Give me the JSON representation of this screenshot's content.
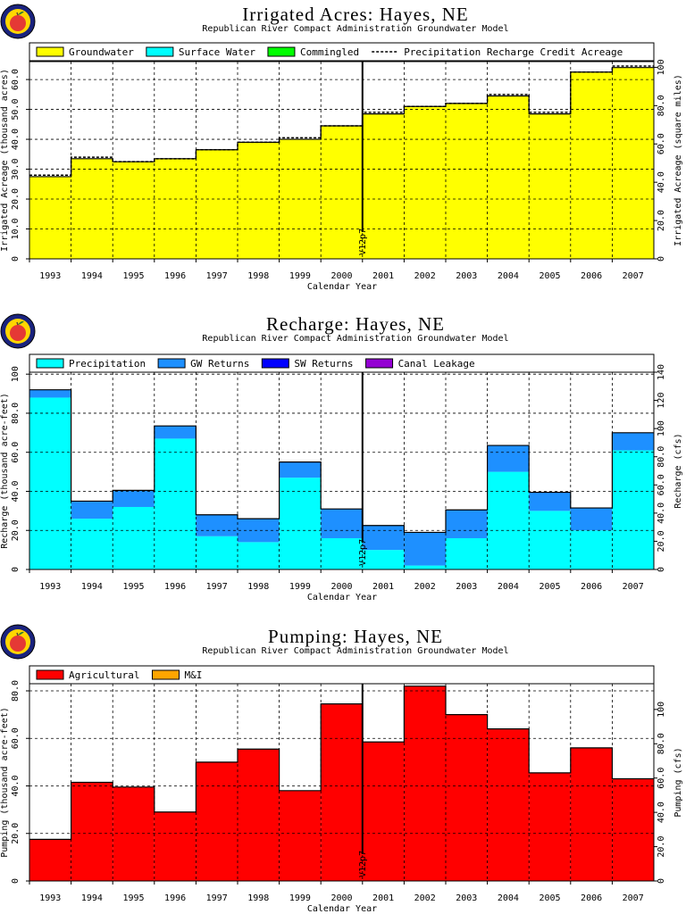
{
  "chart_data": [
    {
      "id": "irrigated",
      "type": "bar",
      "title": "Irrigated Acres: Hayes, NE",
      "subtitle": "Republican River Compact Administration Groundwater Model",
      "xlabel": "Calendar Year",
      "ylabel": "Irrigated Acreage (thousand acres)",
      "ylabel_right": "Irrigated Acreage (square miles)",
      "categories": [
        "1993",
        "1994",
        "1995",
        "1996",
        "1997",
        "1998",
        "1999",
        "2000",
        "2001",
        "2002",
        "2003",
        "2004",
        "2005",
        "2006",
        "2007"
      ],
      "ylim": [
        0,
        66
      ],
      "yticks": [
        0,
        10,
        20,
        30,
        40,
        50,
        60
      ],
      "ytick_labels": [
        "0",
        "10.0",
        "20.0",
        "30.0",
        "40.0",
        "50.0",
        "60.0"
      ],
      "ylim_right": [
        0,
        103
      ],
      "yticks_right": [
        0,
        20,
        40,
        60,
        80,
        100
      ],
      "ytick_labels_right": [
        "0",
        "20.0",
        "40.0",
        "60.0",
        "80.0",
        "100"
      ],
      "grid": true,
      "legend_position": "top",
      "series": [
        {
          "name": "Groundwater",
          "color": "#ffff00",
          "values": [
            27.5,
            33.5,
            32.5,
            33.5,
            36.5,
            39,
            40,
            44.5,
            48.5,
            51,
            52,
            54.5,
            48.5,
            62.5,
            64
          ]
        },
        {
          "name": "Surface Water",
          "color": "#00ffff",
          "values": [
            0,
            0,
            0,
            0,
            0,
            0,
            0,
            0,
            0,
            0,
            0,
            0,
            0,
            0,
            0
          ]
        },
        {
          "name": "Commingled",
          "color": "#00ff00",
          "values": [
            0,
            0,
            0,
            0,
            0,
            0,
            0,
            0,
            0,
            0,
            0,
            0,
            0,
            0,
            0
          ]
        },
        {
          "name": "Precipitation Recharge Credit Acreage",
          "style": "dashed",
          "values": [
            28,
            34,
            32.5,
            33.5,
            36.5,
            39,
            40.5,
            44.5,
            49,
            51,
            52,
            55,
            49,
            62.5,
            64.5
          ]
        }
      ],
      "marker": {
        "x": "2000.5",
        "label": "V12p7"
      }
    },
    {
      "id": "recharge",
      "type": "bar",
      "title": "Recharge: Hayes, NE",
      "subtitle": "Republican River Compact Administration Groundwater Model",
      "xlabel": "Calendar Year",
      "ylabel": "Recharge (thousand acre-feet)",
      "ylabel_right": "Recharge (cfs)",
      "categories": [
        "1993",
        "1994",
        "1995",
        "1996",
        "1997",
        "1998",
        "1999",
        "2000",
        "2001",
        "2002",
        "2003",
        "2004",
        "2005",
        "2006",
        "2007"
      ],
      "ylim": [
        0,
        101
      ],
      "yticks": [
        0,
        20,
        40,
        60,
        80,
        100
      ],
      "ytick_labels": [
        "0",
        "20.0",
        "40.0",
        "60.0",
        "80.0",
        "100"
      ],
      "ylim_right": [
        0,
        140
      ],
      "yticks_right": [
        0,
        20,
        40,
        60,
        80,
        100,
        120,
        140
      ],
      "ytick_labels_right": [
        "0",
        "20.0",
        "40.0",
        "60.0",
        "80.0",
        "100",
        "120",
        "140"
      ],
      "grid": true,
      "legend_position": "top",
      "series": [
        {
          "name": "Precipitation",
          "color": "#00ffff",
          "values": [
            88,
            26,
            32,
            67,
            17,
            14,
            47,
            16,
            10,
            2,
            16,
            50,
            30,
            20,
            61
          ]
        },
        {
          "name": "GW Returns",
          "color": "#1e90ff",
          "values": [
            4,
            9,
            8.5,
            6.5,
            11,
            12,
            8,
            15,
            12.5,
            17,
            14.5,
            13.5,
            9.5,
            11.5,
            9
          ]
        },
        {
          "name": "SW Returns",
          "color": "#0000ff",
          "values": [
            0,
            0,
            0,
            0,
            0,
            0,
            0,
            0,
            0,
            0,
            0,
            0,
            0,
            0,
            0
          ]
        },
        {
          "name": "Canal Leakage",
          "color": "#9400d3",
          "values": [
            0,
            0,
            0,
            0,
            0,
            0,
            0,
            0,
            0,
            0,
            0,
            0,
            0,
            0,
            0
          ]
        }
      ],
      "marker": {
        "x": "2000.5",
        "label": "V12p7"
      }
    },
    {
      "id": "pumping",
      "type": "bar",
      "title": "Pumping: Hayes, NE",
      "subtitle": "Republican River Compact Administration Groundwater Model",
      "xlabel": "Calendar Year",
      "ylabel": "Pumping (thousand acre-feet)",
      "ylabel_right": "Pumping (cfs)",
      "categories": [
        "1993",
        "1994",
        "1995",
        "1996",
        "1997",
        "1998",
        "1999",
        "2000",
        "2001",
        "2002",
        "2003",
        "2004",
        "2005",
        "2006",
        "2007"
      ],
      "ylim": [
        0,
        83
      ],
      "yticks": [
        0,
        20,
        40,
        60,
        80
      ],
      "ytick_labels": [
        "0",
        "20.0",
        "40.0",
        "60.0",
        "80.0"
      ],
      "ylim_right": [
        0,
        115
      ],
      "yticks_right": [
        0,
        20,
        40,
        60,
        80,
        100
      ],
      "ytick_labels_right": [
        "0",
        "20.0",
        "40.0",
        "60.0",
        "80.0",
        "100"
      ],
      "grid": true,
      "legend_position": "top",
      "series": [
        {
          "name": "Agricultural",
          "color": "#ff0000",
          "values": [
            17.5,
            41.5,
            39.5,
            29,
            50,
            55.5,
            38,
            74.5,
            58.5,
            82,
            70,
            64,
            45.5,
            56,
            43
          ]
        },
        {
          "name": "M&I",
          "color": "#ffa500",
          "values": [
            0,
            0,
            0,
            0,
            0,
            0,
            0,
            0,
            0,
            0,
            0,
            0,
            0,
            0,
            0
          ]
        }
      ],
      "marker": {
        "x": "2000.5",
        "label": "V12p7"
      }
    }
  ]
}
